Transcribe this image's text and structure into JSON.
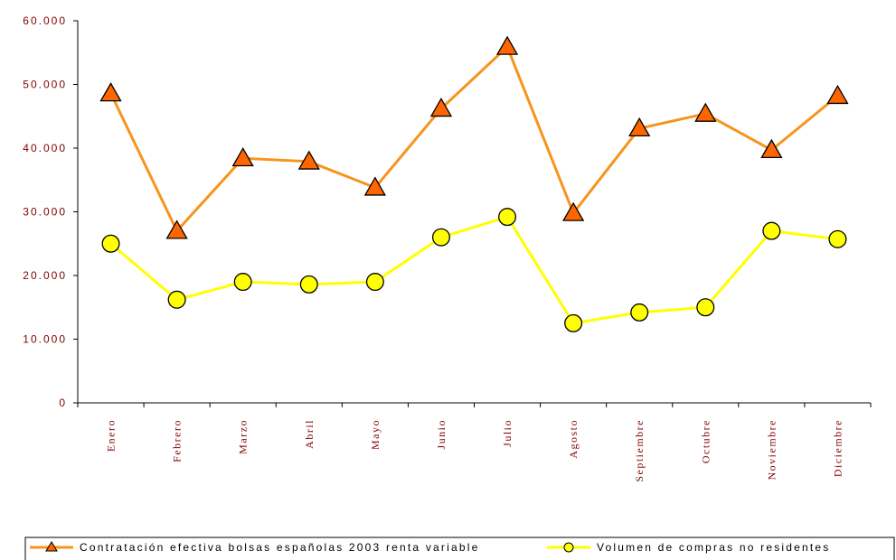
{
  "chart_data": {
    "type": "line",
    "categories": [
      "Enero",
      "Febrero",
      "Marzo",
      "Abril",
      "Mayo",
      "Junio",
      "Julio",
      "Agosto",
      "Septiembre",
      "Octubre",
      "Noviembre",
      "Diciembre"
    ],
    "series": [
      {
        "name": "Contratación efectiva bolsas españolas 2003 renta variable",
        "color": "#f7941d",
        "marker": "triangle",
        "marker_color": "#ff6600",
        "values": [
          48600,
          27000,
          38400,
          37900,
          33800,
          46200,
          55900,
          29800,
          43100,
          45400,
          39700,
          48200
        ]
      },
      {
        "name": "Volumen de compras no residentes",
        "color": "#ffff00",
        "marker": "circle",
        "marker_color": "#ffff00",
        "values": [
          25000,
          16200,
          19000,
          18600,
          19000,
          26000,
          29200,
          12500,
          14200,
          15000,
          27000,
          25700
        ]
      }
    ],
    "ylim": [
      0,
      60000
    ],
    "yticks": [
      0,
      {
        "value": 10000,
        "label": "10.000"
      },
      {
        "value": 20000,
        "label": "20.000"
      },
      {
        "value": 30000,
        "label": "30.000"
      },
      {
        "value": 40000,
        "label": "40.000"
      },
      {
        "value": 50000,
        "label": "50.000"
      },
      {
        "value": 60000,
        "label": "60.000"
      }
    ],
    "grid": false,
    "legend": "bottom"
  }
}
